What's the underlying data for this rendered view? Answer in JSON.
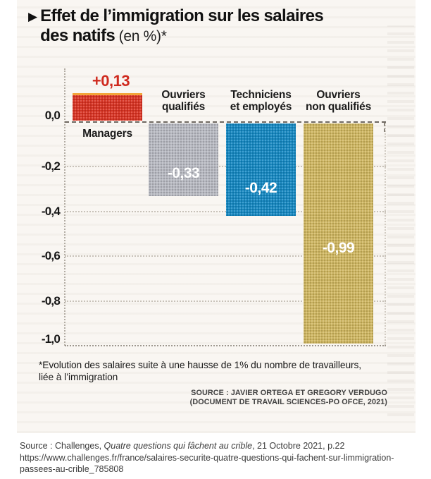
{
  "figure": {
    "title": {
      "bullet": "▶",
      "line1": "Effet de l’immigration sur les salaires",
      "line2_bold": "des natifs",
      "line2_rest": " (en %)*"
    },
    "footnote": "*Evolution des salaires suite à une hausse de 1% du nombre de travailleurs,\nliée à l’immigration",
    "source_line1": "SOURCE : JAVIER ORTEGA ET GREGORY VERDUGO",
    "source_line2": "(DOCUMENT DE TRAVAIL SCIENCES-PO OFCE, 2021)"
  },
  "chart_data": {
    "type": "bar",
    "title": "Effet de l'immigration sur les salaires des natifs (en %)",
    "unit": "%",
    "categories": [
      "Managers",
      "Ouvriers qualifiés",
      "Techniciens et employés",
      "Ouvriers non qualifiés"
    ],
    "category_labels_display": [
      "Managers",
      "Ouvriers\nqualifiés",
      "Techniciens\net employés",
      "Ouvriers\nnon qualifiés"
    ],
    "values": [
      0.13,
      -0.33,
      -0.42,
      -0.99
    ],
    "value_labels": [
      "+0,13",
      "-0,33",
      "-0,42",
      "-0,99"
    ],
    "bar_colors": [
      "#d93222",
      "#b7b9c1",
      "#1487c1",
      "#cfb660"
    ],
    "y_ticks": [
      {
        "value": 0.0,
        "label": "0,0"
      },
      {
        "value": -0.2,
        "label": "-0,2"
      },
      {
        "value": -0.4,
        "label": "-0,4"
      },
      {
        "value": -0.6,
        "label": "-0,6"
      },
      {
        "value": -0.8,
        "label": "-0,8"
      },
      {
        "value": -1.0,
        "label": "-1,0"
      }
    ],
    "ylim": [
      -1.0,
      0.2
    ],
    "grid": "horizontal-dotted",
    "legend": "none",
    "xlabel": "",
    "ylabel": ""
  },
  "caption": {
    "prefix": "Source : Challenges, ",
    "work_title": "Quatre questions qui fâchent au crible",
    "suffix": ", 21 Octobre 2021, p.22",
    "url": "https://www.challenges.fr/france/salaires-securite-quatre-questions-qui-fachent-sur-limmigration-passees-au-crible_785808"
  },
  "colors": {
    "positive_value_text": "#cf2a1e",
    "bar_top_strip": "#f2a53a",
    "title_text": "#111111",
    "caption_text": "#3b3b3b"
  }
}
